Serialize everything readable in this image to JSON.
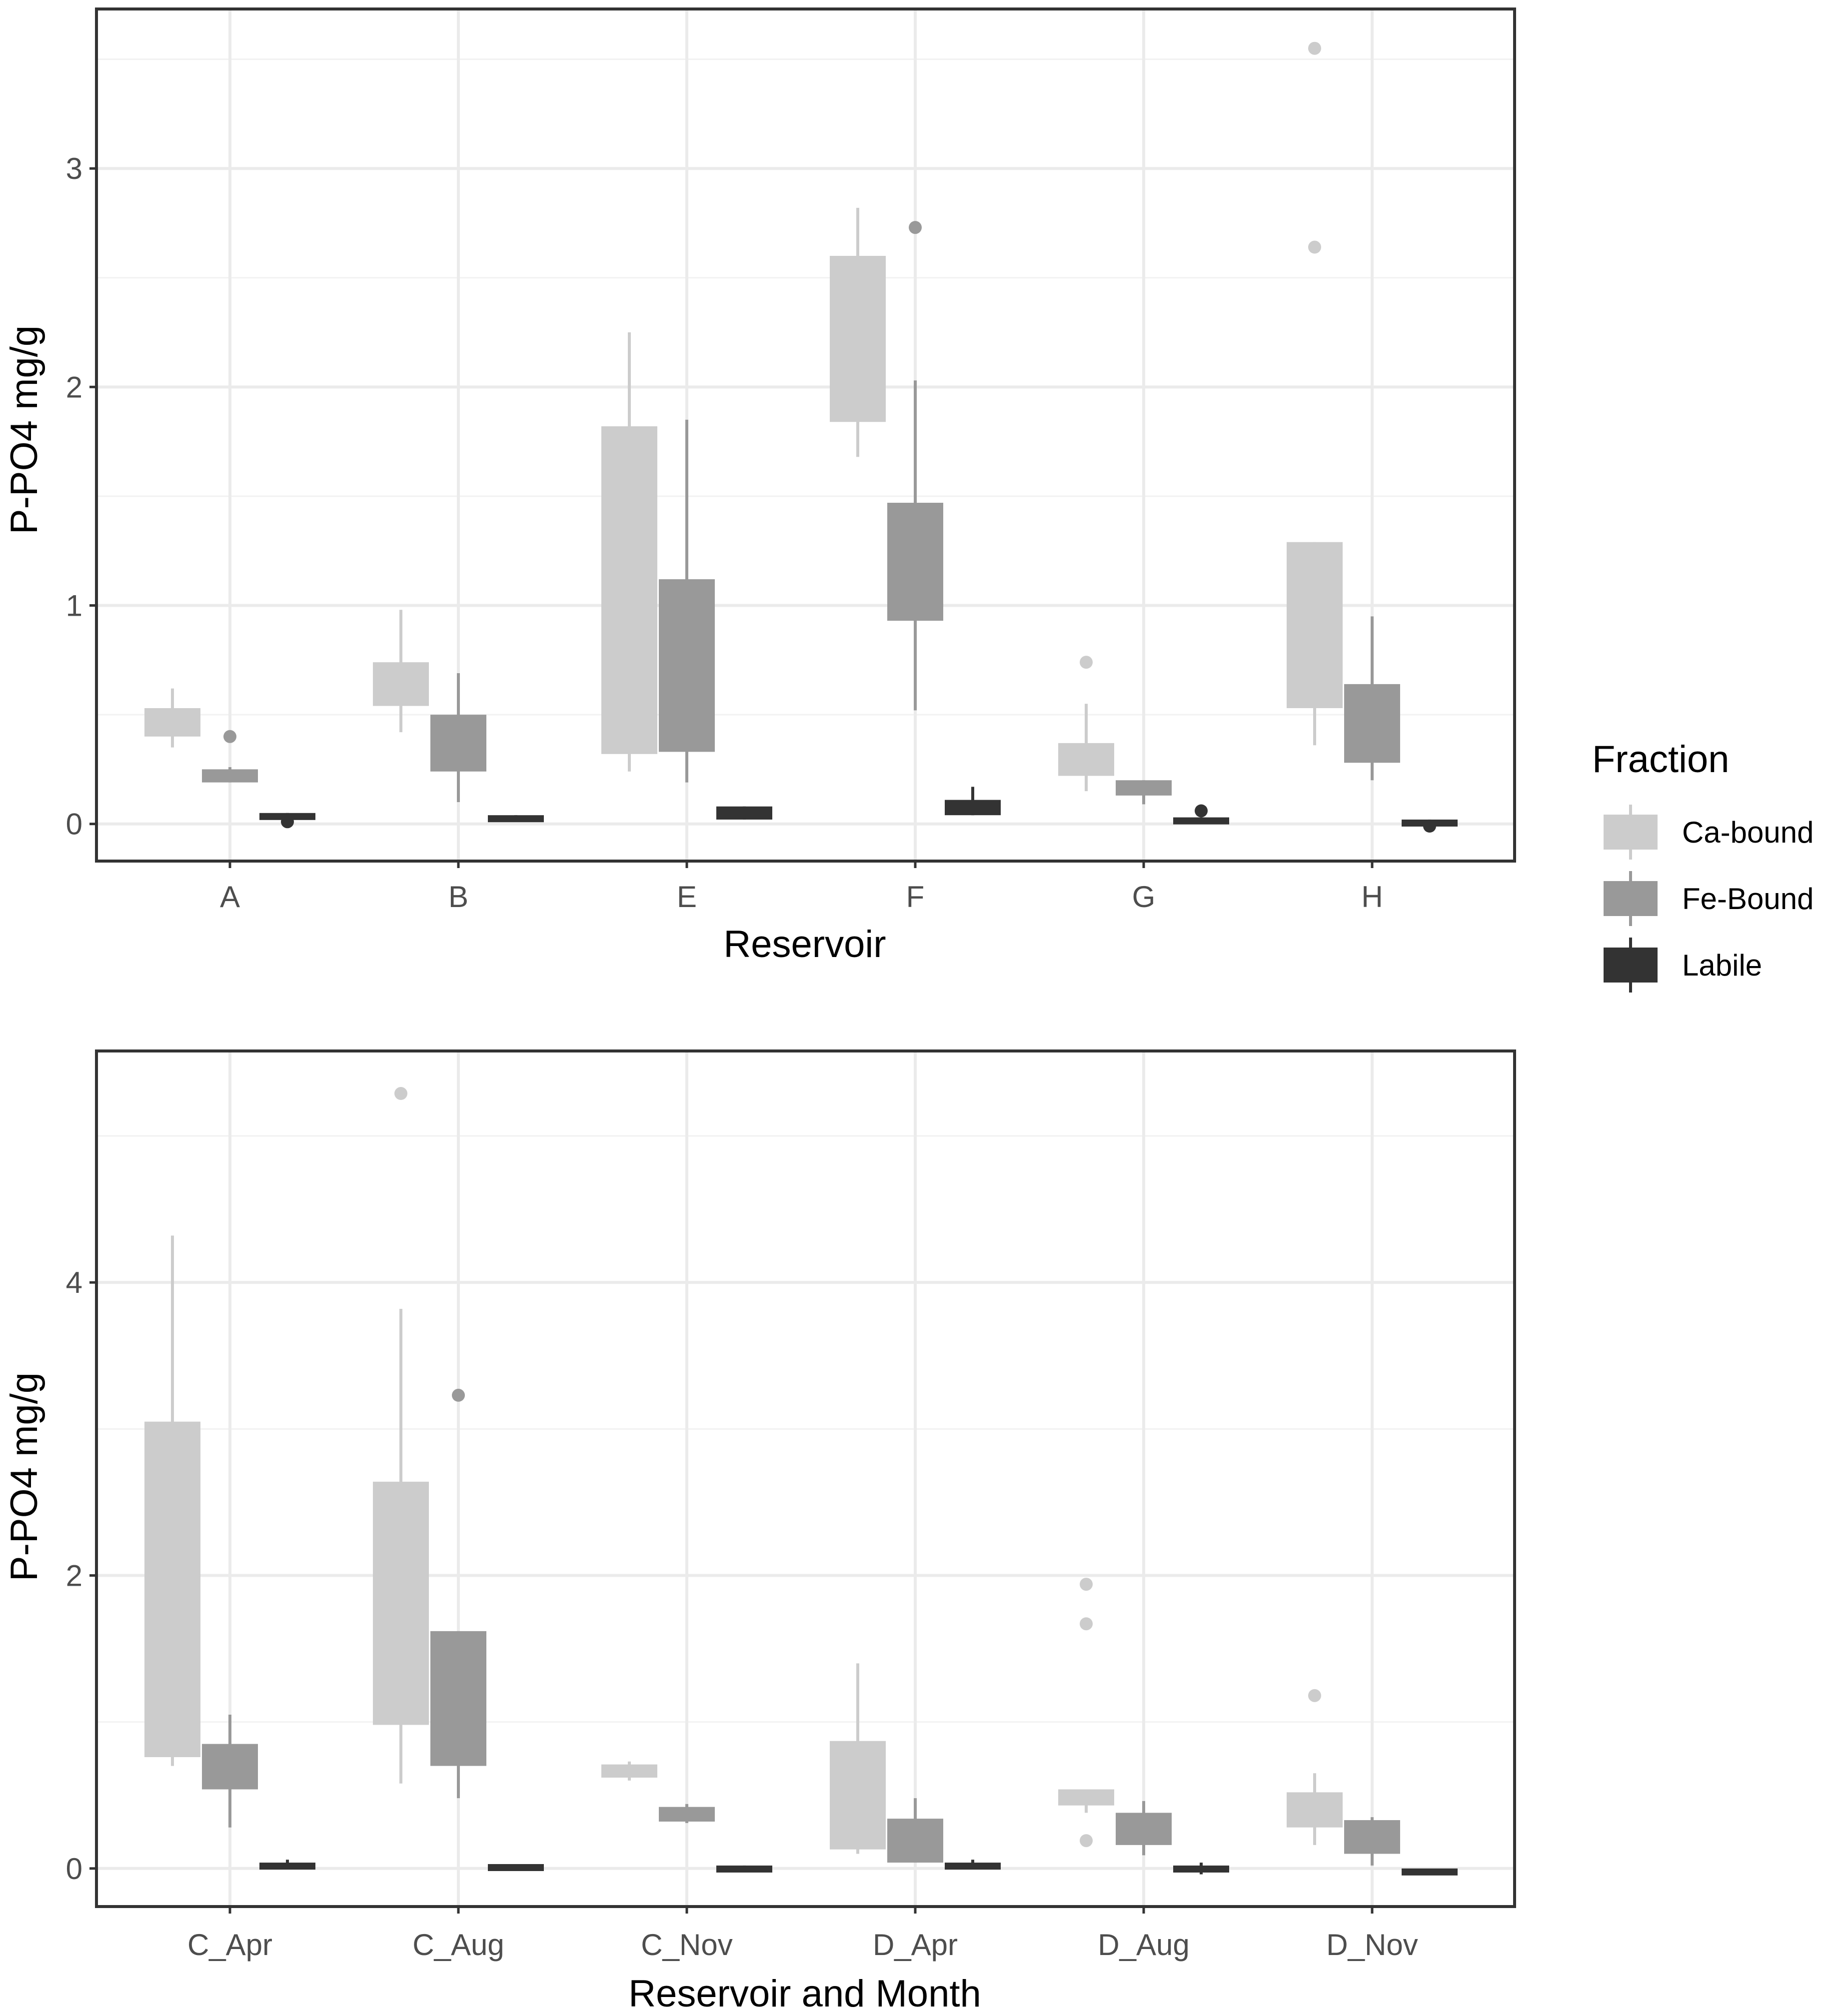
{
  "legend": {
    "title": "Fraction",
    "entries": [
      {
        "key": "ca",
        "label": "Ca-bound",
        "color": "#cccccc"
      },
      {
        "key": "fe",
        "label": "Fe-Bound",
        "color": "#999999"
      },
      {
        "key": "labile",
        "label": "Labile",
        "color": "#333333"
      }
    ]
  },
  "chart_data": [
    {
      "type": "boxplot",
      "xlabel": "Reservoir",
      "ylabel": "P-PO4 mg/g",
      "ylim": [
        -0.17,
        3.73
      ],
      "yticks": [
        0,
        1,
        2,
        3
      ],
      "grid": true,
      "categories": [
        "A",
        "B",
        "E",
        "F",
        "G",
        "H"
      ],
      "series": [
        {
          "name": "Ca-bound",
          "boxes": [
            {
              "lower": 0.35,
              "q1": 0.4,
              "median": 0.46,
              "q3": 0.53,
              "upper": 0.62,
              "outliers": []
            },
            {
              "lower": 0.42,
              "q1": 0.54,
              "median": 0.65,
              "q3": 0.74,
              "upper": 0.98,
              "outliers": []
            },
            {
              "lower": 0.24,
              "q1": 0.32,
              "median": 1.05,
              "q3": 1.82,
              "upper": 2.25,
              "outliers": []
            },
            {
              "lower": 1.68,
              "q1": 1.84,
              "median": 2.25,
              "q3": 2.6,
              "upper": 2.82,
              "outliers": []
            },
            {
              "lower": 0.15,
              "q1": 0.22,
              "median": 0.3,
              "q3": 0.37,
              "upper": 0.55,
              "outliers": [
                0.74
              ]
            },
            {
              "lower": 0.36,
              "q1": 0.53,
              "median": 0.9,
              "q3": 1.29,
              "upper": 1.29,
              "outliers": [
                3.55,
                2.64
              ]
            }
          ]
        },
        {
          "name": "Fe-Bound",
          "boxes": [
            {
              "lower": 0.19,
              "q1": 0.19,
              "median": 0.22,
              "q3": 0.25,
              "upper": 0.26,
              "outliers": [
                0.4
              ]
            },
            {
              "lower": 0.1,
              "q1": 0.24,
              "median": 0.37,
              "q3": 0.5,
              "upper": 0.69,
              "outliers": []
            },
            {
              "lower": 0.19,
              "q1": 0.33,
              "median": 0.72,
              "q3": 1.12,
              "upper": 1.85,
              "outliers": []
            },
            {
              "lower": 0.52,
              "q1": 0.93,
              "median": 1.2,
              "q3": 1.47,
              "upper": 2.03,
              "outliers": [
                2.73
              ]
            },
            {
              "lower": 0.09,
              "q1": 0.13,
              "median": 0.16,
              "q3": 0.2,
              "upper": 0.2,
              "outliers": []
            },
            {
              "lower": 0.2,
              "q1": 0.28,
              "median": 0.45,
              "q3": 0.64,
              "upper": 0.95,
              "outliers": []
            }
          ]
        },
        {
          "name": "Labile",
          "boxes": [
            {
              "lower": 0.0,
              "q1": 0.02,
              "median": 0.03,
              "q3": 0.05,
              "upper": 0.05,
              "outliers": [
                0.01
              ]
            },
            {
              "lower": 0.01,
              "q1": 0.01,
              "median": 0.02,
              "q3": 0.04,
              "upper": 0.04,
              "outliers": []
            },
            {
              "lower": 0.02,
              "q1": 0.02,
              "median": 0.05,
              "q3": 0.08,
              "upper": 0.08,
              "outliers": []
            },
            {
              "lower": 0.04,
              "q1": 0.04,
              "median": 0.08,
              "q3": 0.11,
              "upper": 0.17,
              "outliers": []
            },
            {
              "lower": 0.0,
              "q1": 0.0,
              "median": 0.02,
              "q3": 0.03,
              "upper": 0.03,
              "outliers": [
                0.06
              ]
            },
            {
              "lower": 0.0,
              "q1": 0.0,
              "median": 0.01,
              "q3": 0.02,
              "upper": 0.02,
              "outliers": [
                -0.01
              ]
            }
          ]
        }
      ]
    },
    {
      "type": "boxplot",
      "xlabel": "Reservoir and Month",
      "ylabel": "P-PO4 mg/g",
      "ylim": [
        -0.26,
        5.58
      ],
      "yticks": [
        0,
        2,
        4
      ],
      "grid": true,
      "categories": [
        "C_Apr",
        "C_Aug",
        "C_Nov",
        "D_Apr",
        "D_Aug",
        "D_Nov"
      ],
      "series": [
        {
          "name": "Ca-bound",
          "boxes": [
            {
              "lower": 0.7,
              "q1": 0.76,
              "median": 1.9,
              "q3": 3.05,
              "upper": 4.32,
              "outliers": []
            },
            {
              "lower": 0.58,
              "q1": 0.98,
              "median": 1.8,
              "q3": 2.64,
              "upper": 3.82,
              "outliers": [
                5.29
              ]
            },
            {
              "lower": 0.6,
              "q1": 0.62,
              "median": 0.66,
              "q3": 0.71,
              "upper": 0.73,
              "outliers": []
            },
            {
              "lower": 0.1,
              "q1": 0.13,
              "median": 0.5,
              "q3": 0.87,
              "upper": 1.4,
              "outliers": []
            },
            {
              "lower": 0.38,
              "q1": 0.43,
              "median": 0.48,
              "q3": 0.54,
              "upper": 0.54,
              "outliers": [
                1.94,
                1.67,
                0.19
              ]
            },
            {
              "lower": 0.16,
              "q1": 0.28,
              "median": 0.4,
              "q3": 0.52,
              "upper": 0.65,
              "outliers": [
                1.18
              ]
            }
          ]
        },
        {
          "name": "Fe-Bound",
          "boxes": [
            {
              "lower": 0.28,
              "q1": 0.54,
              "median": 0.7,
              "q3": 0.85,
              "upper": 1.05,
              "outliers": []
            },
            {
              "lower": 0.48,
              "q1": 0.7,
              "median": 1.15,
              "q3": 1.62,
              "upper": 1.62,
              "outliers": [
                3.23
              ]
            },
            {
              "lower": 0.31,
              "q1": 0.32,
              "median": 0.37,
              "q3": 0.42,
              "upper": 0.44,
              "outliers": []
            },
            {
              "lower": 0.04,
              "q1": 0.04,
              "median": 0.18,
              "q3": 0.34,
              "upper": 0.48,
              "outliers": []
            },
            {
              "lower": 0.09,
              "q1": 0.16,
              "median": 0.27,
              "q3": 0.38,
              "upper": 0.46,
              "outliers": []
            },
            {
              "lower": 0.02,
              "q1": 0.1,
              "median": 0.22,
              "q3": 0.33,
              "upper": 0.35,
              "outliers": []
            }
          ]
        },
        {
          "name": "Labile",
          "boxes": [
            {
              "lower": 0.0,
              "q1": 0.0,
              "median": 0.02,
              "q3": 0.04,
              "upper": 0.06,
              "outliers": []
            },
            {
              "lower": 0.0,
              "q1": 0.0,
              "median": 0.01,
              "q3": 0.03,
              "upper": 0.03,
              "outliers": []
            },
            {
              "lower": 0.0,
              "q1": 0.0,
              "median": 0.01,
              "q3": 0.02,
              "upper": 0.02,
              "outliers": []
            },
            {
              "lower": 0.0,
              "q1": 0.0,
              "median": 0.02,
              "q3": 0.04,
              "upper": 0.06,
              "outliers": []
            },
            {
              "lower": -0.04,
              "q1": -0.02,
              "median": 0.0,
              "q3": 0.02,
              "upper": 0.04,
              "outliers": []
            },
            {
              "lower": 0.0,
              "q1": -0.02,
              "median": -0.01,
              "q3": 0.0,
              "upper": 0.0,
              "outliers": []
            }
          ]
        }
      ]
    }
  ]
}
